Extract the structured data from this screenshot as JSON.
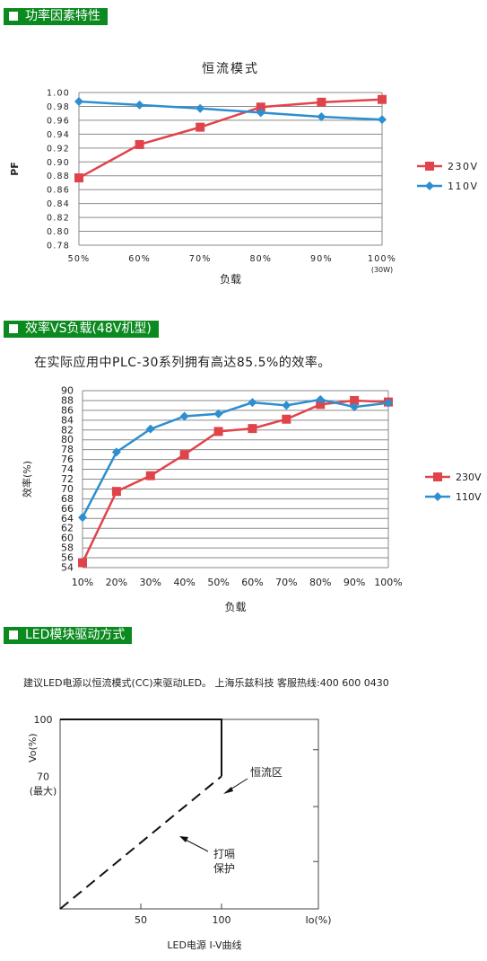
{
  "sections": [
    {
      "title": "功率因素特性"
    },
    {
      "title": "效率VS负载(48V机型)"
    },
    {
      "title": "LED模块驱动方式"
    }
  ],
  "intro_text": "在实际应用中PLC-30系列拥有高达85.5%的效率。",
  "drive_note": "建议LED电源以恒流模式(CC)来驱动LED。 上海乐兹科技 客服热线:400 600 0430",
  "colors": {
    "red": "#e0444a",
    "blue": "#2d8fd0",
    "section": "#0b8a1f"
  },
  "chart_data": [
    {
      "type": "line",
      "title": "恒流模式",
      "xlabel": "负载",
      "ylabel": "PF",
      "x_ticks": [
        "50%",
        "60%",
        "70%",
        "80%",
        "90%",
        "100%"
      ],
      "x_tick_note": "(30W)",
      "ylim": [
        0.78,
        1.0
      ],
      "y_ticks": [
        "1.00",
        "0.98",
        "0.96",
        "0.94",
        "0.92",
        "0.90",
        "0.88",
        "0.86",
        "0.84",
        "0.82",
        "0.80",
        "0.78"
      ],
      "grid": true,
      "legend_position": "right",
      "series": [
        {
          "name": "230V",
          "marker": "square",
          "color": "#e0444a",
          "values": [
            0.877,
            0.925,
            0.95,
            0.979,
            0.986,
            0.99
          ]
        },
        {
          "name": "110V",
          "marker": "diamond",
          "color": "#2d8fd0",
          "values": [
            0.987,
            0.982,
            0.977,
            0.971,
            0.965,
            0.961
          ]
        }
      ]
    },
    {
      "type": "line",
      "title": "",
      "xlabel": "负载",
      "ylabel": "效率(%)",
      "x_ticks": [
        "10%",
        "20%",
        "30%",
        "40%",
        "50%",
        "60%",
        "70%",
        "80%",
        "90%",
        "100%"
      ],
      "ylim": [
        54,
        90
      ],
      "y_ticks": [
        "90",
        "88",
        "86",
        "84",
        "82",
        "80",
        "78",
        "76",
        "74",
        "72",
        "70",
        "68",
        "66",
        "64",
        "62",
        "60",
        "58",
        "56",
        "54"
      ],
      "grid": true,
      "legend_position": "right",
      "series": [
        {
          "name": "230V",
          "marker": "square",
          "color": "#e0444a",
          "values": [
            55.0,
            69.5,
            72.7,
            77.0,
            81.7,
            82.3,
            84.2,
            87.2,
            88.0,
            87.7
          ]
        },
        {
          "name": "110V",
          "marker": "diamond",
          "color": "#2d8fd0",
          "values": [
            64.2,
            77.5,
            82.2,
            84.8,
            85.3,
            87.6,
            87.0,
            88.2,
            86.7,
            87.5
          ]
        }
      ]
    },
    {
      "type": "line",
      "title": "",
      "caption": "LED电源 I-V曲线",
      "xlabel": "Io(%)",
      "ylabel": "Vo(%)",
      "x_ticks": [
        "50",
        "100"
      ],
      "y_ticks": [
        "100",
        "70"
      ],
      "y_tick_note": "(最大)",
      "xlim": [
        0,
        160
      ],
      "ylim": [
        0,
        100
      ],
      "cc_curve": {
        "label": "恒流区",
        "points": [
          [
            0,
            100
          ],
          [
            100,
            100
          ],
          [
            100,
            70
          ]
        ]
      },
      "protect_curve": {
        "label_line1": "打嗝",
        "label_line2": "保护",
        "points": [
          [
            0,
            0
          ],
          [
            100,
            70
          ]
        ]
      }
    }
  ]
}
